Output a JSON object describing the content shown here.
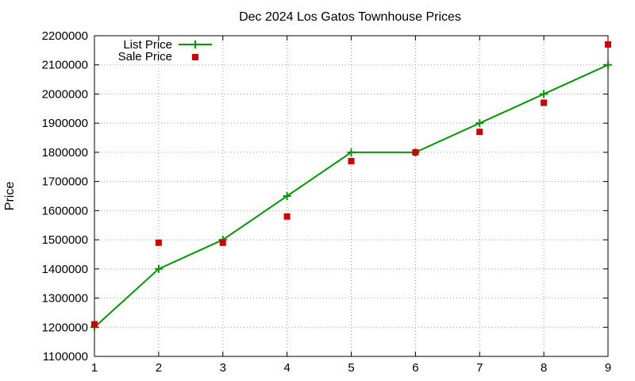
{
  "chart_data": {
    "type": "line",
    "title": "Dec 2024 Los Gatos Townhouse Prices",
    "xlabel": "",
    "ylabel": "Price",
    "x": [
      1,
      2,
      3,
      4,
      5,
      6,
      7,
      8,
      9
    ],
    "xlim": [
      1,
      9
    ],
    "ylim": [
      1100000,
      2200000
    ],
    "x_ticks": [
      1,
      2,
      3,
      4,
      5,
      6,
      7,
      8,
      9
    ],
    "y_ticks": [
      1100000,
      1200000,
      1300000,
      1400000,
      1500000,
      1600000,
      1700000,
      1800000,
      1900000,
      2000000,
      2100000,
      2200000
    ],
    "grid": true,
    "legend_position": "top-left",
    "series": [
      {
        "name": "List Price",
        "style": "line+points",
        "marker": "plus",
        "color": "#009900",
        "values": [
          1200000,
          1400000,
          1500000,
          1650000,
          1800000,
          1800000,
          1900000,
          2000000,
          2100000
        ]
      },
      {
        "name": "Sale Price",
        "style": "points",
        "marker": "square",
        "color": "#cc0000",
        "values": [
          1210000,
          1490000,
          1490000,
          1580000,
          1770000,
          1800000,
          1870000,
          1970000,
          2170000
        ]
      }
    ]
  }
}
